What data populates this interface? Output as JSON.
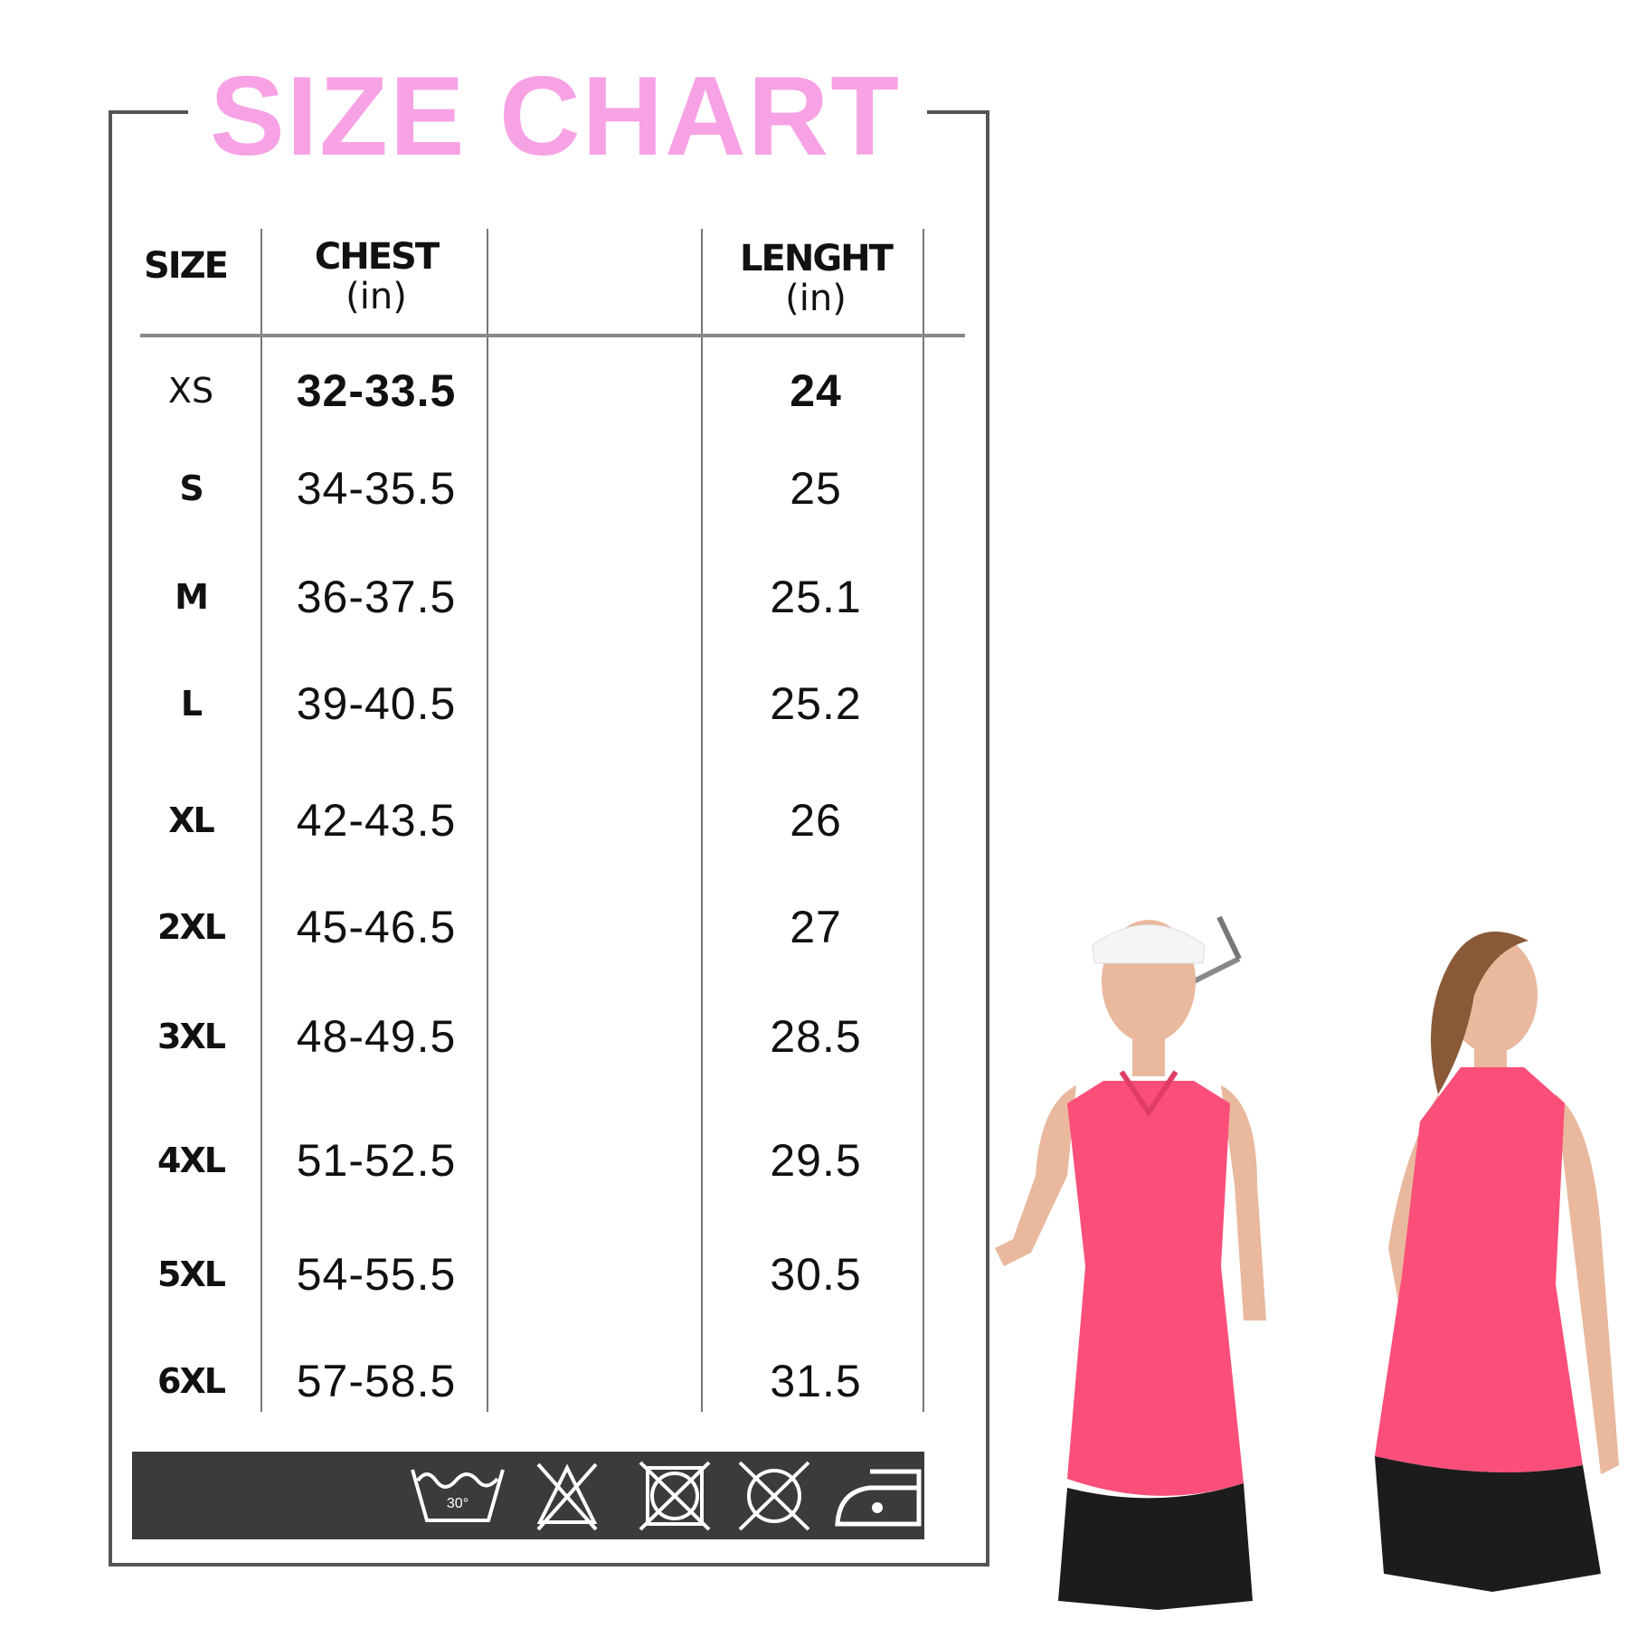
{
  "title": "SIZE CHART",
  "colors": {
    "title": "#f7a2e4",
    "care_bar": "#3b3b3b",
    "top": "#fb4f7a",
    "shorts": "#1c1c1c"
  },
  "headers": {
    "size": "SIZE",
    "chest": "CHEST",
    "chest_unit": "(in)",
    "length": "LENGHT",
    "length_unit": "(in)"
  },
  "rows": [
    {
      "size": "XS",
      "chest": "32-33.5",
      "length": "24"
    },
    {
      "size": "S",
      "chest": "34-35.5",
      "length": "25"
    },
    {
      "size": "M",
      "chest": "36-37.5",
      "length": "25.1"
    },
    {
      "size": "L",
      "chest": "39-40.5",
      "length": "25.2"
    },
    {
      "size": "XL",
      "chest": "42-43.5",
      "length": "26"
    },
    {
      "size": "2XL",
      "chest": "45-46.5",
      "length": "27"
    },
    {
      "size": "3XL",
      "chest": "48-49.5",
      "length": "28.5"
    },
    {
      "size": "4XL",
      "chest": "51-52.5",
      "length": "29.5"
    },
    {
      "size": "5XL",
      "chest": "54-55.5",
      "length": "30.5"
    },
    {
      "size": "6XL",
      "chest": "57-58.5",
      "length": "31.5"
    }
  ],
  "care": {
    "wash_temp": "30°",
    "icons": [
      "wash-30-icon",
      "do-not-bleach-icon",
      "do-not-tumble-dry-icon",
      "do-not-dry-clean-icon",
      "iron-low-heat-icon"
    ]
  }
}
